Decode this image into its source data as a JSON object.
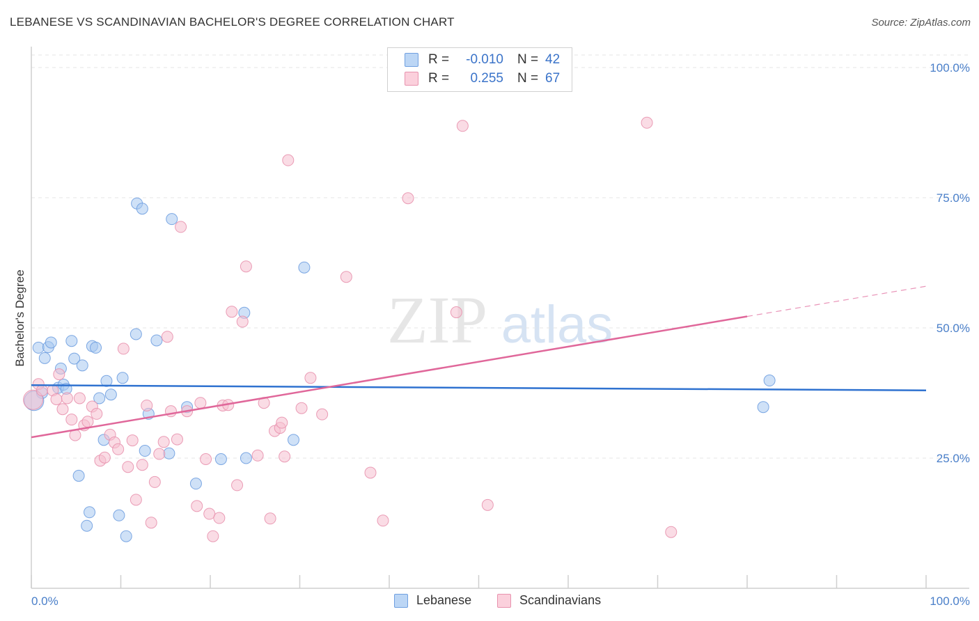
{
  "title": "LEBANESE VS SCANDINAVIAN BACHELOR'S DEGREE CORRELATION CHART",
  "source": "Source: ZipAtlas.com",
  "watermark": {
    "zip": "ZIP",
    "atlas": "atlas"
  },
  "legend": {
    "r_label": "R =",
    "n_label": "N =",
    "rows": [
      {
        "name": "Lebanese",
        "r": "-0.010",
        "n": "42",
        "color": "#a8c8f0",
        "stroke": "#6f9fe0"
      },
      {
        "name": "Scandinavians",
        "r": "0.255",
        "n": "67",
        "color": "#f6c0d0",
        "stroke": "#e892ae"
      }
    ]
  },
  "chart_data": {
    "type": "scatter",
    "ylabel": "Bachelor's Degree",
    "xlim": [
      0,
      100
    ],
    "ylim": [
      0,
      100
    ],
    "x_tick_labels": [
      "0.0%",
      "100.0%"
    ],
    "y_tick_labels": [
      "25.0%",
      "50.0%",
      "75.0%",
      "100.0%"
    ],
    "y_ticks": [
      25,
      50,
      75,
      100
    ],
    "series": [
      {
        "name": "Lebanese",
        "color": "#a8c8f0",
        "stroke": "#6f9fe0",
        "line_color": "#2f72d0",
        "trend": {
          "x0": 0,
          "y0": 39.0,
          "x1": 100,
          "y1": 38.0,
          "solid_until": 100
        },
        "points": [
          [
            0.8,
            46.2
          ],
          [
            1.2,
            37.5
          ],
          [
            1.5,
            44.2
          ],
          [
            1.9,
            46.3
          ],
          [
            2.2,
            47.2
          ],
          [
            3.0,
            38.5
          ],
          [
            3.3,
            42.2
          ],
          [
            3.6,
            39.1
          ],
          [
            3.9,
            38.3
          ],
          [
            4.5,
            47.5
          ],
          [
            4.8,
            44.1
          ],
          [
            5.3,
            21.6
          ],
          [
            5.7,
            42.8
          ],
          [
            6.2,
            12.0
          ],
          [
            6.5,
            14.6
          ],
          [
            6.8,
            46.5
          ],
          [
            7.2,
            46.2
          ],
          [
            7.6,
            36.5
          ],
          [
            8.1,
            28.5
          ],
          [
            8.4,
            39.8
          ],
          [
            8.9,
            37.2
          ],
          [
            9.8,
            14.0
          ],
          [
            10.2,
            40.4
          ],
          [
            10.6,
            10.0
          ],
          [
            11.7,
            48.8
          ],
          [
            11.8,
            73.9
          ],
          [
            12.4,
            72.9
          ],
          [
            12.7,
            26.4
          ],
          [
            13.1,
            33.5
          ],
          [
            14.0,
            47.6
          ],
          [
            15.4,
            25.9
          ],
          [
            15.7,
            70.9
          ],
          [
            17.4,
            34.8
          ],
          [
            18.4,
            20.1
          ],
          [
            21.2,
            24.8
          ],
          [
            23.8,
            52.9
          ],
          [
            24.0,
            25.0
          ],
          [
            30.5,
            61.6
          ],
          [
            29.3,
            28.5
          ],
          [
            81.8,
            34.8
          ],
          [
            82.5,
            39.9
          ],
          [
            0.3,
            36.0
          ]
        ]
      },
      {
        "name": "Scandinavians",
        "color": "#f6c0d0",
        "stroke": "#e892ae",
        "line_color": "#e0679a",
        "trend": {
          "x0": 0,
          "y0": 29.0,
          "x1": 100,
          "y1": 58.0,
          "solid_until": 80
        },
        "points": [
          [
            0.2,
            36.2
          ],
          [
            0.8,
            39.2
          ],
          [
            1.2,
            38.0
          ],
          [
            2.4,
            38.0
          ],
          [
            2.8,
            36.3
          ],
          [
            3.1,
            41.1
          ],
          [
            3.5,
            34.4
          ],
          [
            4.0,
            36.5
          ],
          [
            4.5,
            32.4
          ],
          [
            4.9,
            29.4
          ],
          [
            5.4,
            36.5
          ],
          [
            5.9,
            31.3
          ],
          [
            6.3,
            32.0
          ],
          [
            6.8,
            34.9
          ],
          [
            7.3,
            33.5
          ],
          [
            7.7,
            24.5
          ],
          [
            8.2,
            25.1
          ],
          [
            8.8,
            29.5
          ],
          [
            9.3,
            28.0
          ],
          [
            9.7,
            26.7
          ],
          [
            10.3,
            46.0
          ],
          [
            10.8,
            23.3
          ],
          [
            11.3,
            28.4
          ],
          [
            11.7,
            17.0
          ],
          [
            12.4,
            23.7
          ],
          [
            12.9,
            35.1
          ],
          [
            13.4,
            12.6
          ],
          [
            13.8,
            20.4
          ],
          [
            14.3,
            25.8
          ],
          [
            14.8,
            28.1
          ],
          [
            15.2,
            48.3
          ],
          [
            15.6,
            34.0
          ],
          [
            16.3,
            28.6
          ],
          [
            16.7,
            69.4
          ],
          [
            17.4,
            34.0
          ],
          [
            18.5,
            15.8
          ],
          [
            18.9,
            35.6
          ],
          [
            19.5,
            24.8
          ],
          [
            19.9,
            14.3
          ],
          [
            20.3,
            10.0
          ],
          [
            21.0,
            13.5
          ],
          [
            21.4,
            35.1
          ],
          [
            22.0,
            35.2
          ],
          [
            22.4,
            53.1
          ],
          [
            23.0,
            19.8
          ],
          [
            23.6,
            51.2
          ],
          [
            24.0,
            61.8
          ],
          [
            25.3,
            25.5
          ],
          [
            26.0,
            35.6
          ],
          [
            26.7,
            13.4
          ],
          [
            27.2,
            30.2
          ],
          [
            27.8,
            30.8
          ],
          [
            28.0,
            31.8
          ],
          [
            28.3,
            25.3
          ],
          [
            28.7,
            82.2
          ],
          [
            30.2,
            34.6
          ],
          [
            31.2,
            40.4
          ],
          [
            32.5,
            33.4
          ],
          [
            35.2,
            59.8
          ],
          [
            37.9,
            22.2
          ],
          [
            39.3,
            13.0
          ],
          [
            42.1,
            74.9
          ],
          [
            47.5,
            53.0
          ],
          [
            48.2,
            88.8
          ],
          [
            51.0,
            16.0
          ],
          [
            68.8,
            89.4
          ],
          [
            71.5,
            10.8
          ]
        ]
      }
    ]
  }
}
